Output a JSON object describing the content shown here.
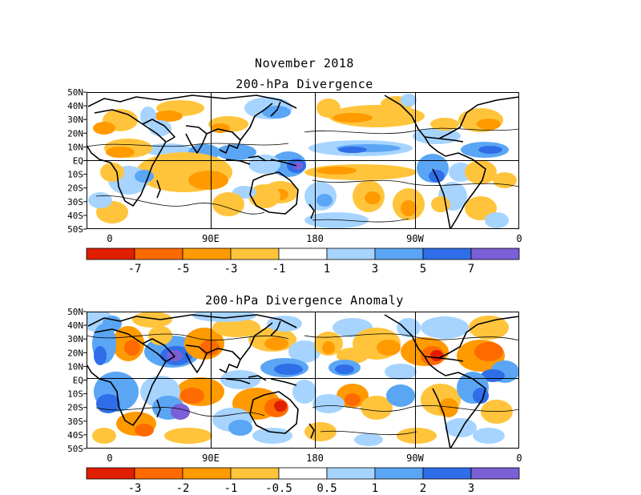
{
  "figure": {
    "month_title": "November 2018",
    "colors": {
      "neg4": "#e01e00",
      "neg3": "#ff6a00",
      "neg2": "#ff9a00",
      "neg1": "#ffc43c",
      "zero": "#ffffff",
      "pos1": "#a6d4ff",
      "pos2": "#5aa6f5",
      "pos3": "#2f6ee8",
      "pos4": "#7a5fd6",
      "land": "#000000",
      "contour": "#000000"
    }
  },
  "panels": [
    {
      "id": "divergence",
      "title": "200-hPa Divergence",
      "lat_labels": [
        "50N",
        "40N",
        "30N",
        "20N",
        "10N",
        "EQ",
        "10S",
        "20S",
        "30S",
        "40S",
        "50S"
      ],
      "lon_labels": [
        "0",
        "90E",
        "180",
        "90W",
        "0"
      ],
      "colorbar_labels": [
        "-7",
        "-5",
        "-3",
        "-1",
        "1",
        "3",
        "5",
        "7"
      ]
    },
    {
      "id": "anomaly",
      "title": "200-hPa Divergence Anomaly",
      "lat_labels": [
        "50N",
        "40N",
        "30N",
        "20N",
        "10N",
        "EQ",
        "10S",
        "20S",
        "30S",
        "40S",
        "50S"
      ],
      "lon_labels": [
        "0",
        "90E",
        "180",
        "90W",
        "0"
      ],
      "colorbar_labels": [
        "-3",
        "-2",
        "-1",
        "-0.5",
        "0.5",
        "1",
        "2",
        "3"
      ]
    }
  ]
}
